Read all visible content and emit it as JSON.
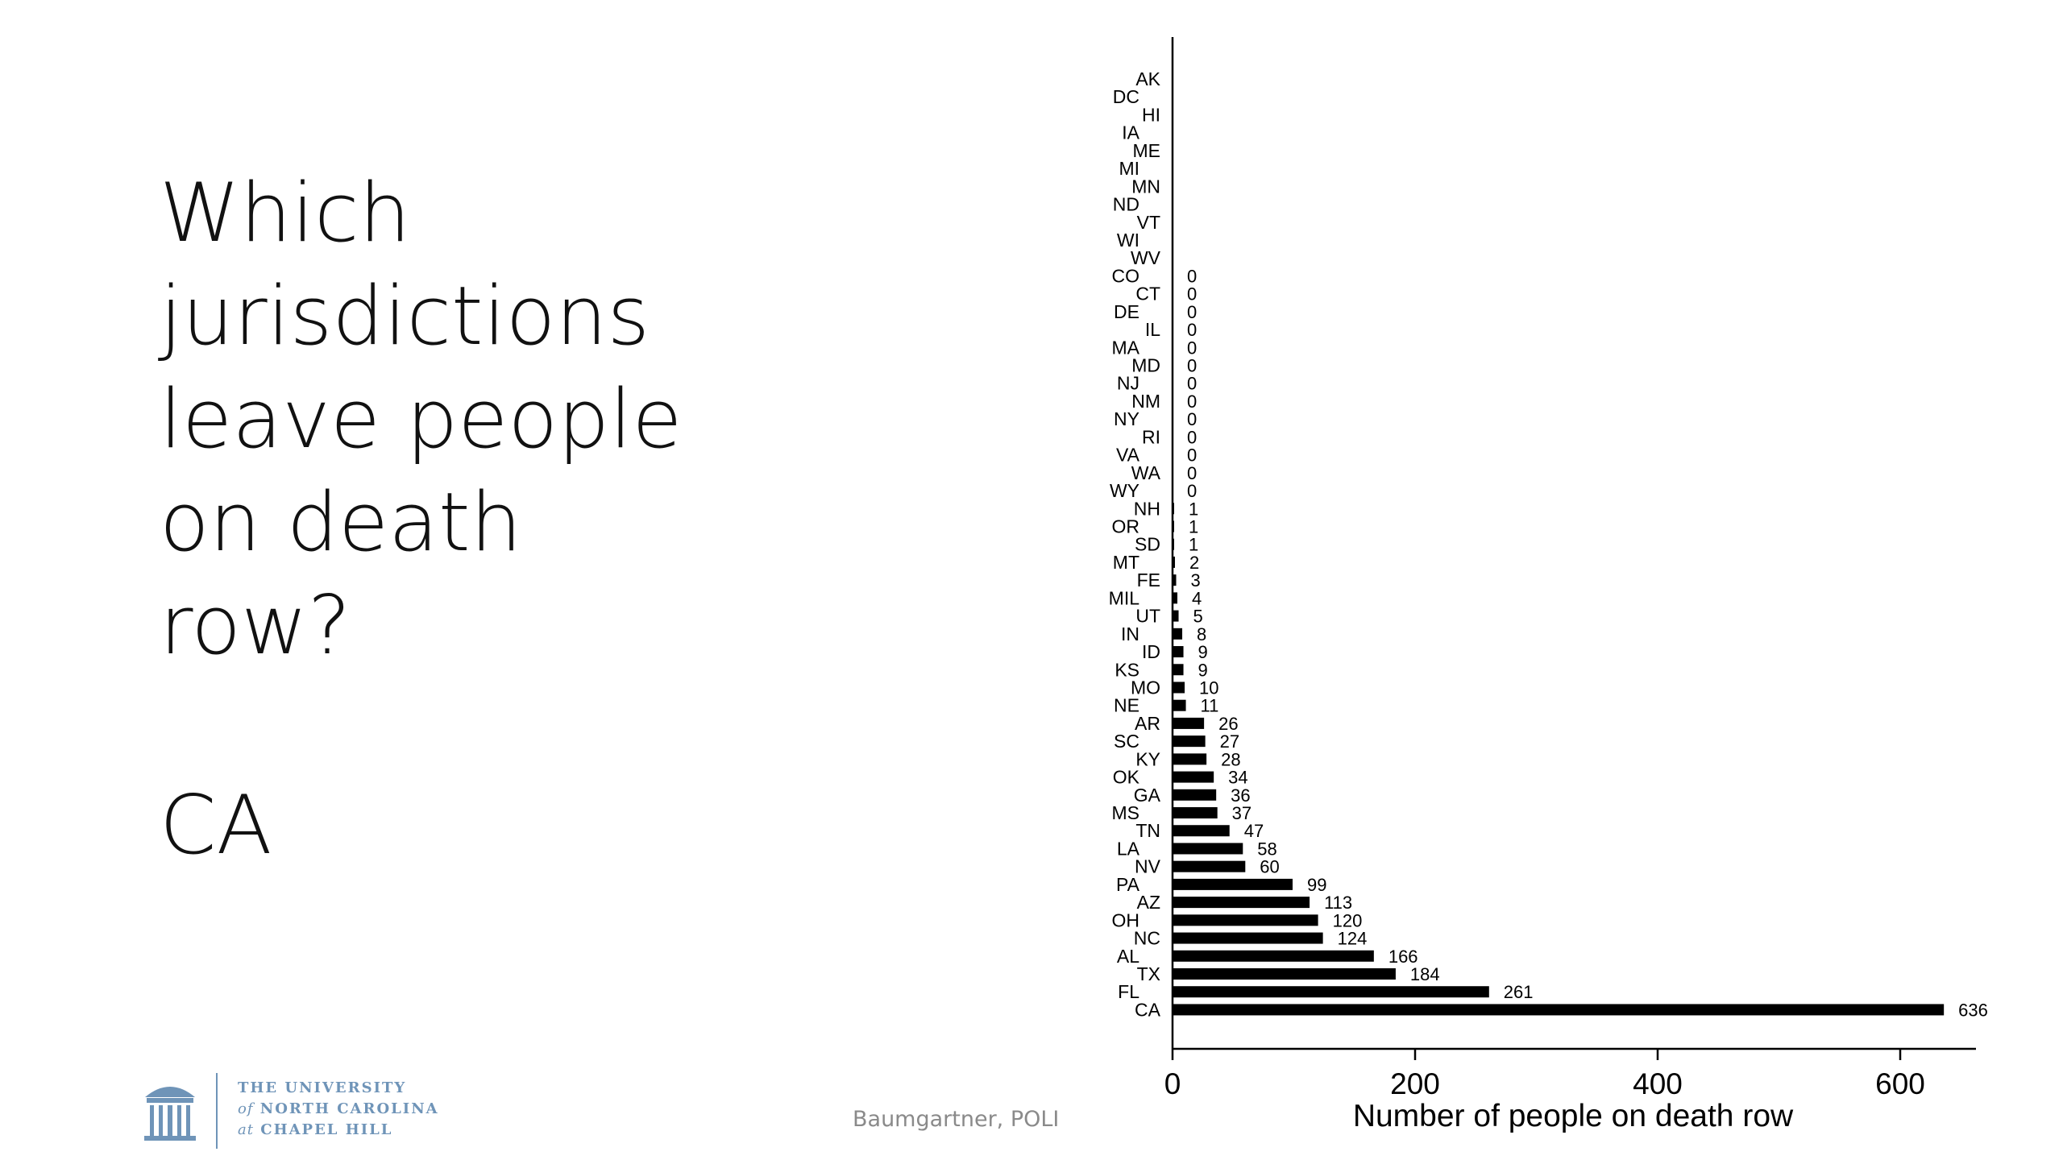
{
  "slide": {
    "question_lines": [
      "Which",
      "jurisdictions",
      "leave people",
      "on death",
      "row?"
    ],
    "answer": "CA",
    "credit": "Baumgartner, POLI"
  },
  "logo": {
    "line1": "THE UNIVERSITY",
    "line2_prefix": "of",
    "line2": "NORTH CAROLINA",
    "line3_prefix": "at",
    "line3": "CHAPEL HILL",
    "color": "#6f94b8",
    "icon": "old-well-icon"
  },
  "chart_data": {
    "type": "bar",
    "orientation": "horizontal",
    "title": "",
    "xlabel": "Number of people on death row",
    "ylabel": "",
    "xlim": [
      0,
      660
    ],
    "xticks": [
      0,
      200,
      400,
      600
    ],
    "grid": false,
    "bar_color": "#000000",
    "categories": [
      "AK",
      "DC",
      "HI",
      "IA",
      "ME",
      "MI",
      "MN",
      "ND",
      "VT",
      "WI",
      "WV",
      "CO",
      "CT",
      "DE",
      "IL",
      "MA",
      "MD",
      "NJ",
      "NM",
      "NY",
      "RI",
      "VA",
      "WA",
      "WY",
      "NH",
      "OR",
      "SD",
      "MT",
      "FE",
      "MIL",
      "UT",
      "IN",
      "ID",
      "KS",
      "MO",
      "NE",
      "AR",
      "SC",
      "KY",
      "OK",
      "GA",
      "MS",
      "TN",
      "LA",
      "NV",
      "PA",
      "AZ",
      "OH",
      "NC",
      "AL",
      "TX",
      "FL",
      "CA"
    ],
    "values": [
      null,
      null,
      null,
      null,
      null,
      null,
      null,
      null,
      null,
      null,
      null,
      0,
      0,
      0,
      0,
      0,
      0,
      0,
      0,
      0,
      0,
      0,
      0,
      0,
      1,
      1,
      1,
      2,
      3,
      4,
      5,
      8,
      9,
      9,
      10,
      11,
      26,
      27,
      28,
      34,
      36,
      37,
      47,
      58,
      60,
      99,
      113,
      120,
      124,
      166,
      184,
      261,
      636
    ],
    "value_labels": [
      "",
      "",
      "",
      "",
      "",
      "",
      "",
      "",
      "",
      "",
      "",
      "0",
      "0",
      "0",
      "0",
      "0",
      "0",
      "0",
      "0",
      "0",
      "0",
      "0",
      "0",
      "0",
      "1",
      "1",
      "1",
      "2",
      "3",
      "4",
      "5",
      "8",
      "9",
      "9",
      "10",
      "11",
      "26",
      "27",
      "28",
      "34",
      "36",
      "37",
      "47",
      "58",
      "60",
      "99",
      "113",
      "120",
      "124",
      "166",
      "184",
      "261",
      "636"
    ]
  }
}
